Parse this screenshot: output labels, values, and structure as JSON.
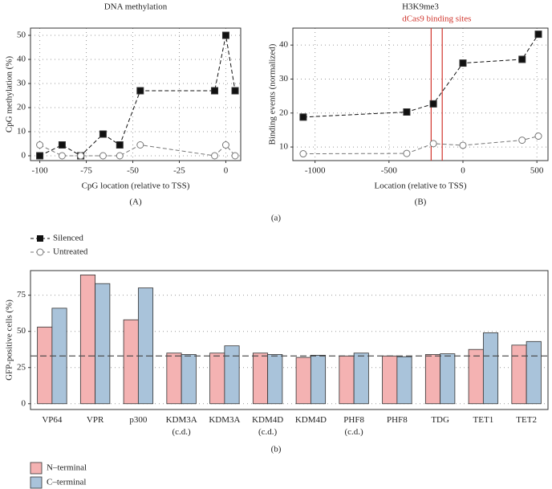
{
  "chart_data": [
    {
      "type": "line",
      "title": "DNA methylation",
      "x_label": "CpG location (relative to TSS)",
      "y_label": "CpG methylation (%)",
      "caption": "(A)",
      "x": [
        -100,
        -88,
        -78,
        -66,
        -57,
        -46,
        -6,
        0,
        5
      ],
      "series": [
        {
          "name": "Silenced",
          "color": "#111111",
          "marker": "square",
          "line_style": "dashed",
          "values": [
            0,
            4.5,
            0,
            9,
            4.5,
            27,
            27,
            50,
            27
          ]
        },
        {
          "name": "Untreated",
          "color": "#777777",
          "marker": "circle",
          "line_style": "dashed",
          "values": [
            4.5,
            0,
            0,
            0,
            0,
            4.5,
            0,
            4.5,
            0
          ]
        }
      ],
      "xlim": [
        -105,
        8
      ],
      "xticks": [
        -100,
        -75,
        -50,
        -25,
        0
      ],
      "ylim": [
        -2,
        53
      ],
      "yticks": [
        0,
        10,
        20,
        30,
        40,
        50
      ],
      "grid": true
    },
    {
      "type": "line",
      "title": "H3K9me3",
      "x_label": "Location (relative to TSS)",
      "y_label": "Binding events (normalized)",
      "caption": "(B)",
      "x": [
        -1080,
        -380,
        -200,
        0,
        400,
        510
      ],
      "series": [
        {
          "color": "#111111",
          "marker": "square",
          "line_style": "dashed",
          "values": [
            18.8,
            20.3,
            22.7,
            34.7,
            35.8,
            43.2
          ]
        },
        {
          "color": "#777777",
          "marker": "circle",
          "line_style": "dashed",
          "values": [
            8,
            8.1,
            11,
            10.5,
            12,
            13.2
          ]
        }
      ],
      "vlines": [
        -215,
        -140
      ],
      "vline_color": "#d0342c",
      "vline_label": "dCas9 binding sites",
      "xlim": [
        -1150,
        575
      ],
      "xticks": [
        -1000,
        -500,
        0,
        500
      ],
      "ylim": [
        6,
        45
      ],
      "yticks": [
        10,
        20,
        30,
        40
      ],
      "grid": true
    },
    {
      "type": "bar",
      "y_label": "GFP-positive cells (%)",
      "caption": "(b)",
      "categories": [
        "VP64",
        "VPR",
        "p300",
        "KDM3A\n(c.d.)",
        "KDM3A",
        "KDM4D\n(c.d.)",
        "KDM4D",
        "PHF8\n(c.d.)",
        "PHF8",
        "TDG",
        "TET1",
        "TET2"
      ],
      "series": [
        {
          "name": "N–terminal",
          "color": "#f4b2b2",
          "values": [
            53,
            89,
            58,
            35,
            35,
            35,
            32,
            33,
            33,
            34,
            37.5,
            40.5
          ]
        },
        {
          "name": "C–terminal",
          "color": "#a9c3da",
          "values": [
            66,
            83,
            80,
            34,
            40,
            34,
            33.5,
            35,
            32.5,
            34.5,
            49,
            43
          ]
        }
      ],
      "hline": 33,
      "ylim": [
        -4,
        92
      ],
      "yticks": [
        0,
        25,
        50,
        75
      ],
      "grid": true
    }
  ],
  "panel_label": "(a)"
}
